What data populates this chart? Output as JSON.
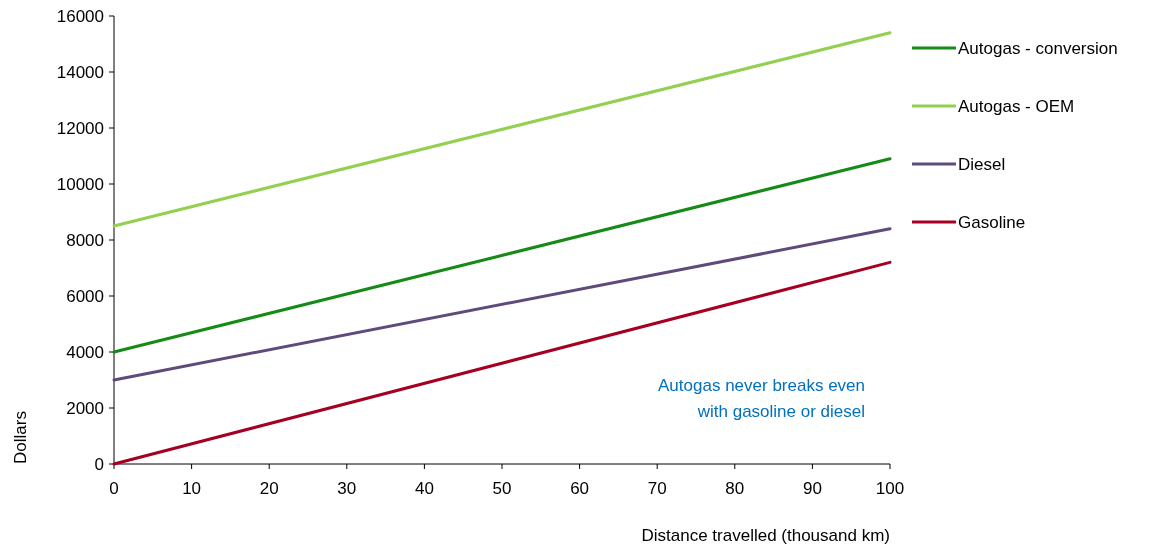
{
  "chart_data": {
    "type": "line",
    "xlabel": "Distance travelled (thousand km)",
    "ylabel": "Dollars",
    "x": [
      0,
      100
    ],
    "xlim": [
      0,
      100
    ],
    "xticks": [
      0,
      10,
      20,
      30,
      40,
      50,
      60,
      70,
      80,
      90,
      100
    ],
    "ylim": [
      0,
      16000
    ],
    "yticks": [
      0,
      2000,
      4000,
      6000,
      8000,
      10000,
      12000,
      14000,
      16000
    ],
    "grid": false,
    "legend": "right",
    "marker": "none",
    "line_style": "solid",
    "series": [
      {
        "name": "Autogas - conversion",
        "color": "#168a16",
        "values": [
          4000,
          10900
        ]
      },
      {
        "name": "Autogas - OEM",
        "color": "#92d050",
        "values": [
          8500,
          15400
        ]
      },
      {
        "name": "Diesel",
        "color": "#604a7b",
        "values": [
          3000,
          8400
        ]
      },
      {
        "name": "Gasoline",
        "color": "#a50021",
        "values": [
          0,
          7200
        ]
      }
    ],
    "annotations": [
      "Autogas never breaks even with gasoline or diesel"
    ]
  }
}
